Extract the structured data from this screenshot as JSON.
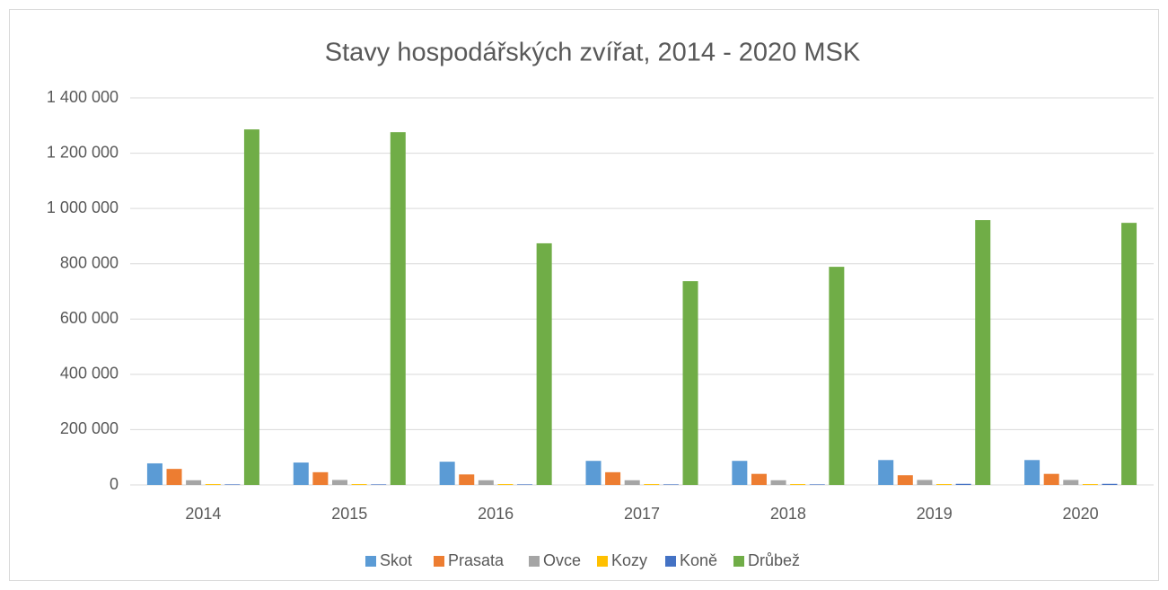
{
  "chart_data": {
    "type": "bar",
    "title": "Stavy hospodářských zvířat, 2014 - 2020 MSK",
    "categories": [
      "2014",
      "2015",
      "2016",
      "2017",
      "2018",
      "2019",
      "2020"
    ],
    "series": [
      {
        "name": "Skot",
        "color": "#5b9bd5",
        "values": [
          78000,
          81000,
          84000,
          87000,
          87000,
          90000,
          90000
        ]
      },
      {
        "name": "Prasata",
        "color": "#ed7d31",
        "values": [
          58000,
          46000,
          38000,
          46000,
          40000,
          35000,
          40000
        ]
      },
      {
        "name": "Ovce",
        "color": "#a5a5a5",
        "values": [
          17000,
          18000,
          17000,
          17000,
          17000,
          18000,
          18000
        ]
      },
      {
        "name": "Kozy",
        "color": "#ffc000",
        "values": [
          3000,
          3000,
          3000,
          3000,
          3000,
          3000,
          3000
        ]
      },
      {
        "name": "Koně",
        "color": "#4472c4",
        "values": [
          2000,
          2000,
          2000,
          2000,
          2000,
          4000,
          4000
        ]
      },
      {
        "name": "Drůbež",
        "color": "#70ad47",
        "values": [
          1286000,
          1276000,
          874000,
          737000,
          789000,
          958000,
          948000
        ]
      }
    ],
    "ylim": [
      0,
      1400000
    ],
    "yticks": [
      0,
      {
        "value": 200000,
        "label": "200 000"
      },
      {
        "value": 400000,
        "label": "400 000"
      },
      {
        "value": 600000,
        "label": "600 000"
      },
      {
        "value": 800000,
        "label": "800 000"
      },
      {
        "value": 1000000,
        "label": "1 000 000"
      },
      {
        "value": 1200000,
        "label": "1 200 000"
      },
      {
        "value": 1400000,
        "label": "1 400 000"
      }
    ],
    "grid": true,
    "legend": "bottom"
  }
}
